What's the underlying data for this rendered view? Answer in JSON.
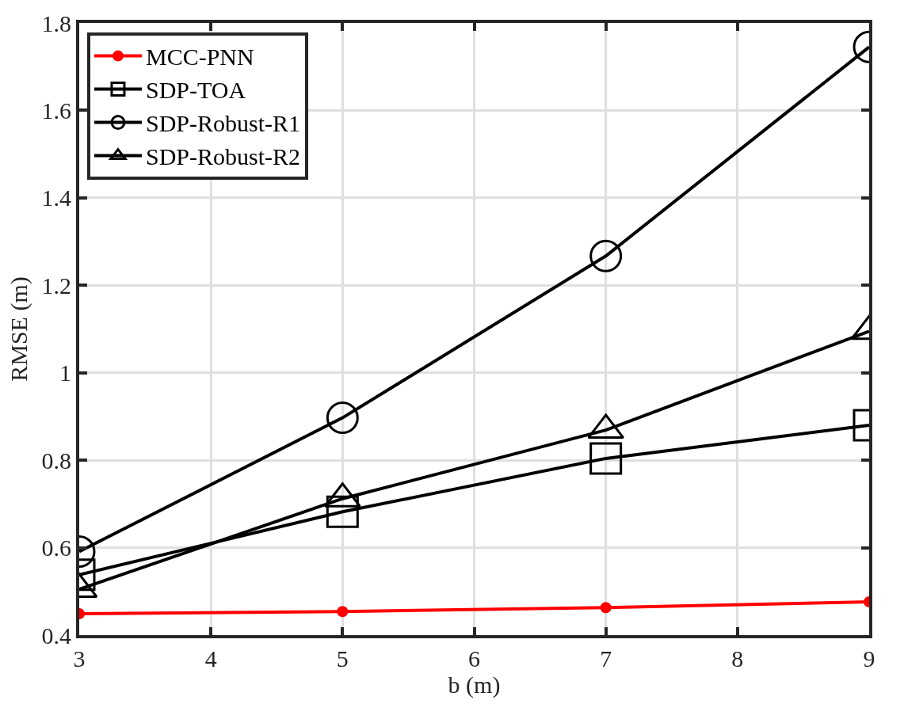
{
  "chart_data": {
    "type": "line",
    "xlabel": "b (m)",
    "ylabel": "RMSE (m)",
    "x": [
      3,
      5,
      7,
      9
    ],
    "series": [
      {
        "name": "MCC-PNN",
        "color": "#ff0000",
        "marker": "circle",
        "values": [
          0.449,
          0.454,
          0.463,
          0.476
        ]
      },
      {
        "name": "SDP-TOA",
        "color": "#000000",
        "marker": "square",
        "values": [
          0.538,
          0.682,
          0.804,
          0.88
        ]
      },
      {
        "name": "SDP-Robust-R1",
        "color": "#000000",
        "marker": "circle",
        "values": [
          0.591,
          0.897,
          1.267,
          1.745
        ]
      },
      {
        "name": "SDP-Robust-R2",
        "color": "#000000",
        "marker": "triangle",
        "values": [
          0.505,
          0.712,
          0.869,
          1.095
        ]
      }
    ],
    "xlim": [
      3,
      9
    ],
    "xticks": [
      3,
      4,
      5,
      6,
      7,
      8,
      9
    ],
    "ylim": [
      0.4,
      1.8
    ],
    "yticks": [
      0.4,
      0.6,
      0.8,
      1,
      1.2,
      1.4,
      1.6,
      1.8
    ],
    "grid": true,
    "legend": "top left",
    "line_style": "solid"
  }
}
